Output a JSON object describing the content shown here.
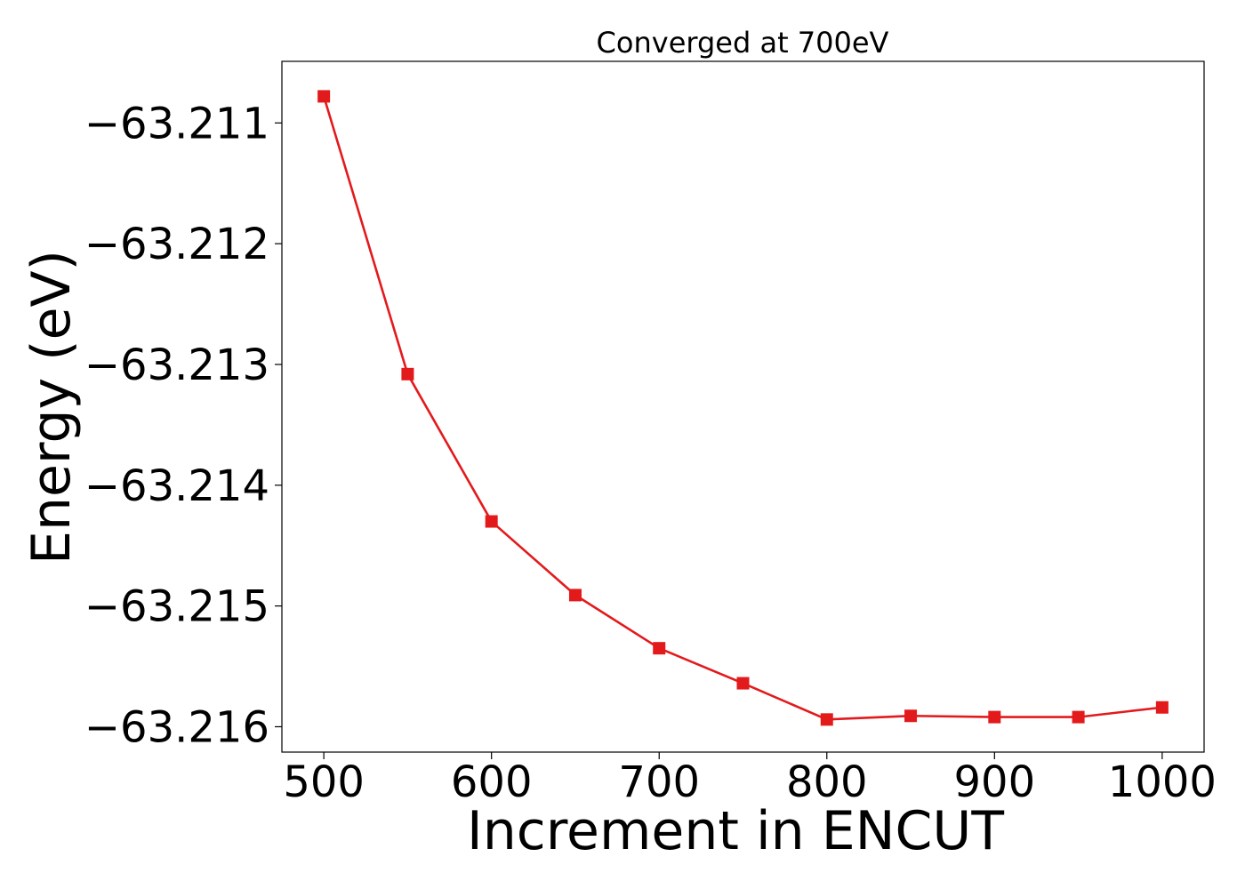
{
  "chart_data": {
    "type": "line",
    "title": "Converged at 700eV",
    "xlabel": "Increment in ENCUT",
    "ylabel": "Energy (eV)",
    "x": [
      500,
      550,
      600,
      650,
      700,
      750,
      800,
      850,
      900,
      950,
      1000
    ],
    "series": [
      {
        "values": [
          -63.21078,
          -63.21308,
          -63.2143,
          -63.21491,
          -63.21535,
          -63.21564,
          -63.21594,
          -63.21591,
          -63.21592,
          -63.21592,
          -63.21584
        ],
        "color": "#e31a1c",
        "marker": "square"
      }
    ],
    "xticks": [
      500,
      600,
      700,
      800,
      900,
      1000
    ],
    "xtick_labels": [
      "500",
      "600",
      "700",
      "800",
      "900",
      "1000"
    ],
    "yticks": [
      -63.211,
      -63.212,
      -63.213,
      -63.214,
      -63.215,
      -63.216
    ],
    "ytick_labels": [
      "−63.211",
      "−63.212",
      "−63.213",
      "−63.214",
      "−63.215",
      "−63.216"
    ],
    "xlim": [
      475,
      1025
    ],
    "ylim": [
      -63.21621,
      -63.21049
    ],
    "grid": false,
    "legend": "none"
  }
}
